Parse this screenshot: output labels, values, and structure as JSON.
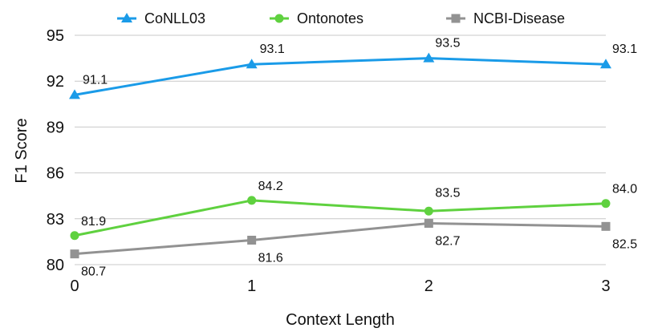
{
  "chart_data": {
    "type": "line",
    "title": "",
    "xlabel": "Context Length",
    "ylabel": "F1 Score",
    "x": [
      0,
      1,
      2,
      3
    ],
    "x_ticks": [
      "0",
      "1",
      "2",
      "3"
    ],
    "y_ticks": [
      "80",
      "83",
      "86",
      "89",
      "92",
      "95"
    ],
    "ylim": [
      80,
      95
    ],
    "grid": true,
    "legend_position": "top",
    "series": [
      {
        "name": "CoNLL03",
        "values": [
          91.1,
          93.1,
          93.5,
          93.1
        ],
        "labels": [
          "91.1",
          "93.1",
          "93.5",
          "93.1"
        ],
        "color": "#1a9be8",
        "marker": "triangle"
      },
      {
        "name": "Ontonotes",
        "values": [
          81.9,
          84.2,
          83.5,
          84.0
        ],
        "labels": [
          "81.9",
          "84.2",
          "83.5",
          "84.0"
        ],
        "color": "#5fd13f",
        "marker": "circle"
      },
      {
        "name": "NCBI-Disease",
        "values": [
          80.7,
          81.6,
          82.7,
          82.5
        ],
        "labels": [
          "80.7",
          "81.6",
          "82.7",
          "82.5"
        ],
        "color": "#929292",
        "marker": "square"
      }
    ]
  }
}
